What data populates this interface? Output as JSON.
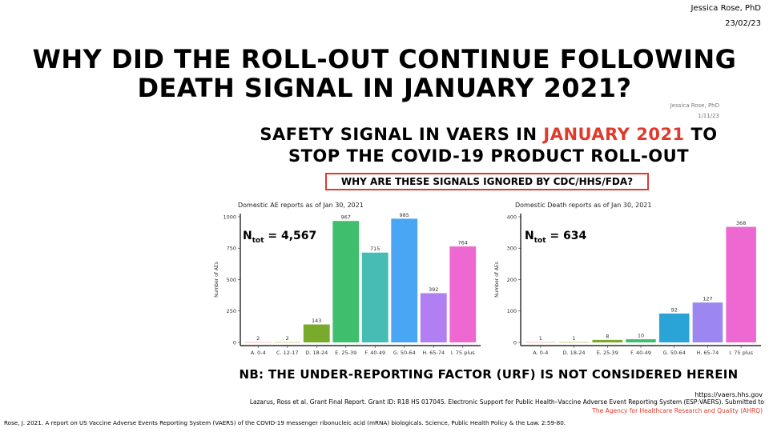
{
  "header": {
    "author": "Jessica Rose, PhD",
    "date": "23/02/23"
  },
  "main_title": {
    "line1": "WHY DID THE ROLL-OUT CONTINUE FOLLOWING",
    "line2": "DEATH SIGNAL IN JANUARY 2021?"
  },
  "inner_slide": {
    "author": "Jessica Rose, PhD",
    "date": "1/11/23",
    "subtitle": {
      "pre": "SAFETY SIGNAL IN VAERS IN ",
      "highlight": "JANUARY 2021",
      "post": " TO",
      "line2": "STOP THE COVID-19 PRODUCT ROLL-OUT"
    },
    "question": "WHY ARE THESE SIGNALS IGNORED BY CDC/HHS/FDA?",
    "nb": "NB: THE UNDER-REPORTING FACTOR (URF) IS NOT CONSIDERED HEREIN"
  },
  "footer": {
    "url": "https://vaers.hhs.gov",
    "grant": "Lazarus, Ross et al. Grant Final Report. Grant ID: R18 HS 017045. Electronic Support for Public Health–Vaccine Adverse Event Reporting System (ESP:VAERS). Submitted to",
    "ahrq": "The Agency for Healthcare Research and Quality (AHRQ)",
    "citation": "Rose, J. 2021. A report on US Vaccine Adverse Events Reporting System (VAERS) of the COVID-19 messenger ribonucleic acid (mRNA) biologicals. Science, Public Health Policy & the Law. 2:59-80."
  },
  "colors": {
    "accent_red": "#e03a2c"
  },
  "chart_data": [
    {
      "type": "bar",
      "title": "Domestic AE reports as of Jan 30, 2021",
      "ylabel": "Number of AEs",
      "xlabel": "",
      "ntot_main": "N",
      "ntot_sub": "tot",
      "ntot_value": " = 4,567",
      "ylim": [
        0,
        1000
      ],
      "yticks": [
        0,
        250,
        500,
        750,
        1000
      ],
      "categories": [
        "A. 0-4",
        "C. 12-17",
        "D. 18-24",
        "E. 25-39",
        "F. 40-49",
        "G. 50-64",
        "H. 65-74",
        "I. 75 plus"
      ],
      "values": [
        2,
        2,
        143,
        967,
        715,
        985,
        392,
        764
      ],
      "colors": [
        "#f3a59a",
        "#d6b35a",
        "#7aaa2c",
        "#3fbf6e",
        "#45bdb5",
        "#48a6f5",
        "#b27ff2",
        "#ee68d2"
      ],
      "grid": false
    },
    {
      "type": "bar",
      "title": "Domestic Death reports as of Jan 30, 2021",
      "ylabel": "Number of AEs",
      "xlabel": "",
      "ntot_main": "N",
      "ntot_sub": "tot",
      "ntot_value": " = 634",
      "ylim": [
        0,
        400
      ],
      "yticks": [
        0,
        100,
        200,
        300,
        400
      ],
      "categories": [
        "A. 0-4",
        "D. 18-24",
        "E. 25-39",
        "F. 40-49",
        "G. 50-64",
        "H. 65-74",
        "I. 75 plus"
      ],
      "values": [
        1,
        1,
        8,
        10,
        92,
        127,
        368
      ],
      "colors": [
        "#f3a59a",
        "#c9a93e",
        "#7aaa2c",
        "#3fbf6e",
        "#2aa3d6",
        "#9c86f0",
        "#ee68d2"
      ],
      "grid": false
    }
  ]
}
